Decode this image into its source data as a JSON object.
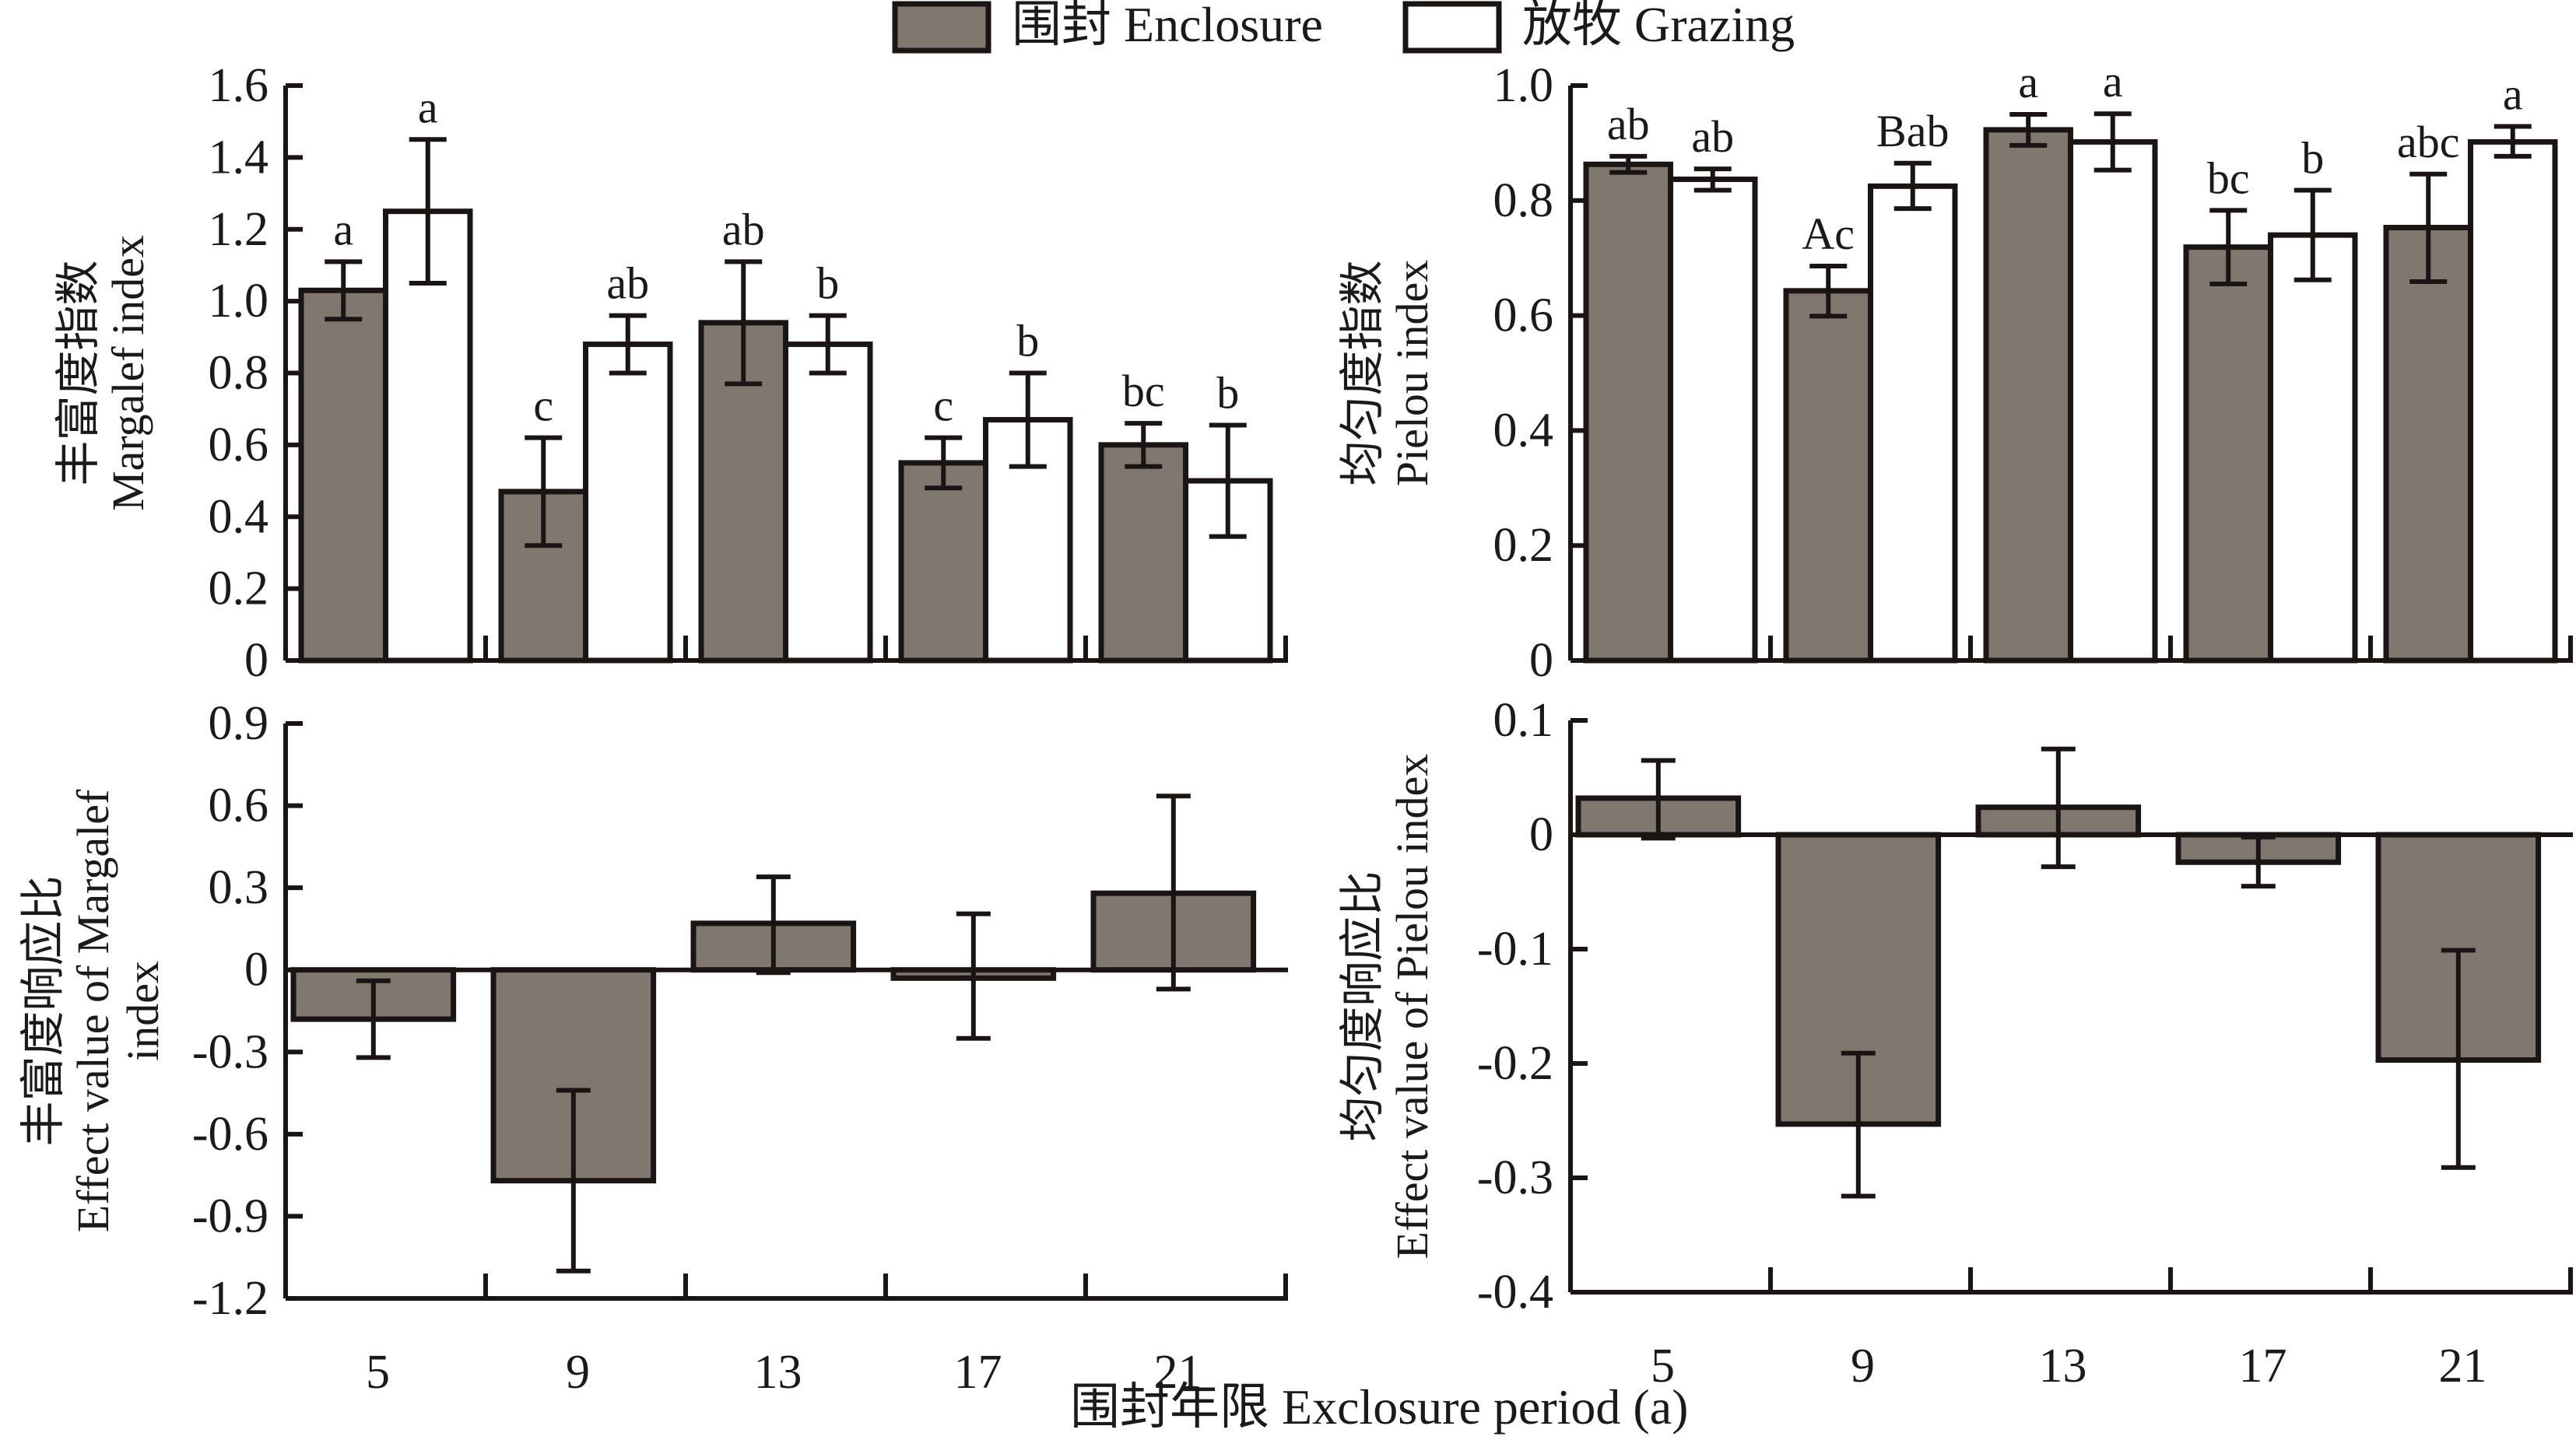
{
  "legend": {
    "items": [
      {
        "label": "围封 Enclosure",
        "color": "#80776f"
      },
      {
        "label": "放牧 Grazing",
        "color": "#ffffff"
      }
    ]
  },
  "x_title": "围封年限 Exclosure period (a)",
  "colors": {
    "enclosure": "#80776f",
    "grazing": "#ffffff",
    "stroke": "#1a1414"
  },
  "chart_data": [
    {
      "id": "margalef",
      "type": "bar",
      "title": "",
      "xlabel": "",
      "ylabel_cn": "丰富度指数",
      "ylabel_en": "Margalef index",
      "categories": [
        "5",
        "9",
        "13",
        "17",
        "21"
      ],
      "ylim": [
        0,
        1.6
      ],
      "yticks": [
        0,
        0.2,
        0.4,
        0.6,
        0.8,
        1.0,
        1.2,
        1.4,
        1.6
      ],
      "ytick_labels": [
        "0",
        "0.2",
        "0.4",
        "0.6",
        "0.8",
        "1.0",
        "1.2",
        "1.4",
        "1.6"
      ],
      "series": [
        {
          "name": "围封 Enclosure",
          "values": [
            1.03,
            0.47,
            0.94,
            0.55,
            0.6
          ],
          "err_high": [
            1.11,
            0.62,
            1.11,
            0.62,
            0.66
          ],
          "err_low": [
            0.95,
            0.32,
            0.77,
            0.48,
            0.54
          ],
          "labels": [
            "a",
            "c",
            "ab",
            "c",
            "bc"
          ]
        },
        {
          "name": "放牧 Grazing",
          "values": [
            1.25,
            0.88,
            0.88,
            0.67,
            0.5
          ],
          "err_high": [
            1.45,
            0.96,
            0.96,
            0.8,
            0.655
          ],
          "err_low": [
            1.05,
            0.8,
            0.8,
            0.54,
            0.345
          ],
          "labels": [
            "a",
            "ab",
            "b",
            "b",
            "b"
          ]
        }
      ],
      "grid": false
    },
    {
      "id": "pielou",
      "type": "bar",
      "title": "",
      "xlabel": "",
      "ylabel_cn": "均匀度指数",
      "ylabel_en": "Pielou index",
      "categories": [
        "5",
        "9",
        "13",
        "17",
        "21"
      ],
      "ylim": [
        0,
        1.0
      ],
      "yticks": [
        0,
        0.2,
        0.4,
        0.6,
        0.8,
        1.0
      ],
      "ytick_labels": [
        "0",
        "0.2",
        "0.4",
        "0.6",
        "0.8",
        "1.0"
      ],
      "series": [
        {
          "name": "围封 Enclosure",
          "values": [
            0.863,
            0.643,
            0.923,
            0.719,
            0.753
          ],
          "err_high": [
            0.877,
            0.686,
            0.95,
            0.783,
            0.846
          ],
          "err_low": [
            0.849,
            0.599,
            0.896,
            0.655,
            0.659
          ],
          "labels": [
            "ab",
            "Ac",
            "a",
            "bc",
            "abc"
          ]
        },
        {
          "name": "放牧 Grazing",
          "values": [
            0.837,
            0.825,
            0.902,
            0.74,
            0.902
          ],
          "err_high": [
            0.855,
            0.865,
            0.951,
            0.818,
            0.929
          ],
          "err_low": [
            0.818,
            0.786,
            0.853,
            0.662,
            0.877
          ],
          "labels": [
            "ab",
            "Bab",
            "a",
            "b",
            "a"
          ]
        }
      ],
      "grid": false
    },
    {
      "id": "margalef_effect",
      "type": "bar",
      "title": "",
      "xlabel": "",
      "ylabel_cn": "丰富度响应比",
      "ylabel_en": "Effect value of Margalef",
      "ylabel_en2": "index",
      "categories": [
        "5",
        "9",
        "13",
        "17",
        "21"
      ],
      "ylim": [
        -1.2,
        0.9
      ],
      "yticks": [
        -1.2,
        -0.9,
        -0.6,
        -0.3,
        0,
        0.3,
        0.6,
        0.9
      ],
      "ytick_labels": [
        "-1.2",
        "-0.9",
        "-0.6",
        "-0.3",
        "0",
        "0.3",
        "0.6",
        "0.9"
      ],
      "series": [
        {
          "name": "Effect value",
          "values": [
            -0.18,
            -0.77,
            0.17,
            -0.03,
            0.28
          ],
          "err_high": [
            -0.04,
            -0.44,
            0.34,
            0.205,
            0.635
          ],
          "err_low": [
            -0.32,
            -1.1,
            -0.01,
            -0.25,
            -0.07
          ]
        }
      ],
      "grid": false
    },
    {
      "id": "pielou_effect",
      "type": "bar",
      "title": "",
      "xlabel": "",
      "ylabel_cn": "均匀度响应比",
      "ylabel_en": "Effect value of Pielou index",
      "categories": [
        "5",
        "9",
        "13",
        "17",
        "21"
      ],
      "ylim": [
        -0.4,
        0.1
      ],
      "yticks": [
        -0.4,
        -0.3,
        -0.2,
        -0.1,
        0,
        0.1
      ],
      "ytick_labels": [
        "-0.4",
        "-0.3",
        "-0.2",
        "-0.1",
        "0",
        "0.1"
      ],
      "series": [
        {
          "name": "Effect value",
          "values": [
            0.032,
            -0.253,
            0.024,
            -0.024,
            -0.197
          ],
          "err_high": [
            0.065,
            -0.191,
            0.075,
            -0.002,
            -0.101
          ],
          "err_low": [
            -0.003,
            -0.316,
            -0.028,
            -0.045,
            -0.291
          ]
        }
      ],
      "grid": false
    }
  ]
}
